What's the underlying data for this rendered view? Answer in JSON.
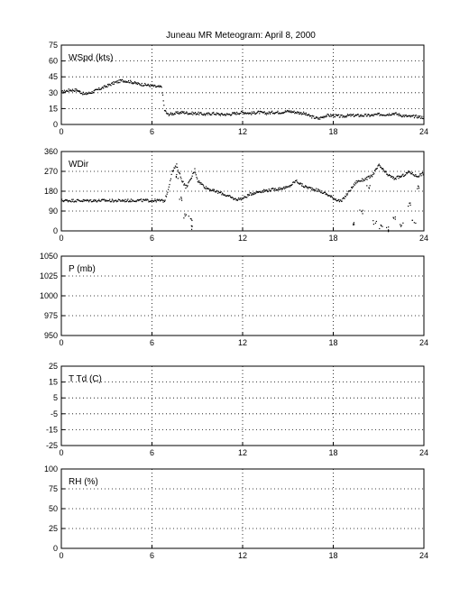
{
  "chart_data": {
    "title": "Juneau MR Meteogram:      April  8, 2000",
    "type": "scatter",
    "grid": true,
    "x_ticks": [
      "0",
      "6",
      "12",
      "18",
      "24"
    ],
    "xlim": [
      0,
      24
    ],
    "panels": [
      {
        "label": "WSpd (kts)",
        "ylim": [
          0,
          75
        ],
        "y_ticks": [
          "0",
          "15",
          "30",
          "45",
          "60",
          "75"
        ],
        "series": [
          {
            "x": [
              0,
              0.5,
              1,
              1.5,
              2,
              2.5,
              3,
              3.5,
              4,
              4.5,
              5,
              5.5,
              6,
              6.3,
              6.6,
              6.8,
              7,
              7.5,
              8,
              8.5,
              9,
              9.5,
              10,
              10.5,
              11,
              11.5,
              12,
              12.5,
              13,
              13.5,
              14,
              14.5,
              15,
              15.5,
              16,
              16.5,
              17,
              17.5,
              18,
              18.5,
              19,
              19.5,
              20,
              20.5,
              21,
              21.5,
              22,
              22.5,
              23,
              23.5,
              24
            ],
            "y": [
              31,
              33,
              33,
              29,
              31,
              34,
              37,
              40,
              42,
              41,
              39,
              38,
              37,
              36,
              36,
              14,
              10,
              11,
              12,
              11,
              11,
              10,
              11,
              10,
              10,
              11,
              12,
              11,
              12,
              11,
              12,
              12,
              13,
              12,
              11,
              8,
              6,
              9,
              9,
              8,
              9,
              9,
              9,
              9,
              10,
              10,
              11,
              9,
              8,
              8,
              7
            ]
          }
        ]
      },
      {
        "label": "WDir",
        "ylim": [
          0,
          360
        ],
        "y_ticks": [
          "0",
          "90",
          "180",
          "270",
          "360"
        ],
        "series": [
          {
            "x": [
              0,
              0.5,
              1,
              1.5,
              2,
              2.5,
              3,
              3.5,
              4,
              4.5,
              5,
              5.5,
              6,
              6.5,
              6.8,
              7,
              7.3,
              7.6,
              7.9,
              8.2,
              8.5,
              8.8,
              9,
              9.5,
              10,
              10.5,
              11,
              11.5,
              12,
              12.5,
              13,
              13.5,
              14,
              14.5,
              15,
              15.5,
              16,
              16.5,
              17,
              17.5,
              18,
              18.5,
              19,
              19.5,
              20,
              20.5,
              21,
              21.5,
              22,
              22.5,
              23,
              23.5,
              24
            ],
            "y": [
              140,
              140,
              140,
              139,
              140,
              140,
              140,
              139,
              140,
              140,
              141,
              140,
              140,
              140,
              138,
              180,
              270,
              300,
              240,
              200,
              230,
              280,
              230,
              200,
              185,
              175,
              160,
              145,
              150,
              170,
              180,
              185,
              190,
              195,
              200,
              230,
              205,
              195,
              185,
              170,
              150,
              135,
              180,
              225,
              235,
              250,
              300,
              260,
              240,
              250,
              270,
              250,
              265
            ]
          },
          {
            "x": [
              7.6,
              7.9,
              8.2,
              8.5,
              8.7,
              19.3,
              19.8,
              20.3,
              20.7,
              21.1,
              21.5,
              22.0,
              22.5,
              23.0,
              23.3,
              23.6
            ],
            "y": [
              250,
              150,
              70,
              60,
              20,
              30,
              90,
              200,
              40,
              20,
              10,
              60,
              30,
              120,
              40,
              200
            ]
          }
        ]
      },
      {
        "label": "P (mb)",
        "ylim": [
          950,
          1050
        ],
        "y_ticks": [
          "950",
          "975",
          "1000",
          "1025",
          "1050"
        ],
        "series": []
      },
      {
        "label": "T Td (C)",
        "ylim": [
          -25,
          25
        ],
        "y_ticks": [
          "-25",
          "-15",
          "-5",
          "5",
          "15",
          "25"
        ],
        "series": []
      },
      {
        "label": "RH (%)",
        "ylim": [
          0,
          100
        ],
        "y_ticks": [
          "0",
          "25",
          "50",
          "75",
          "100"
        ],
        "series": []
      }
    ]
  }
}
